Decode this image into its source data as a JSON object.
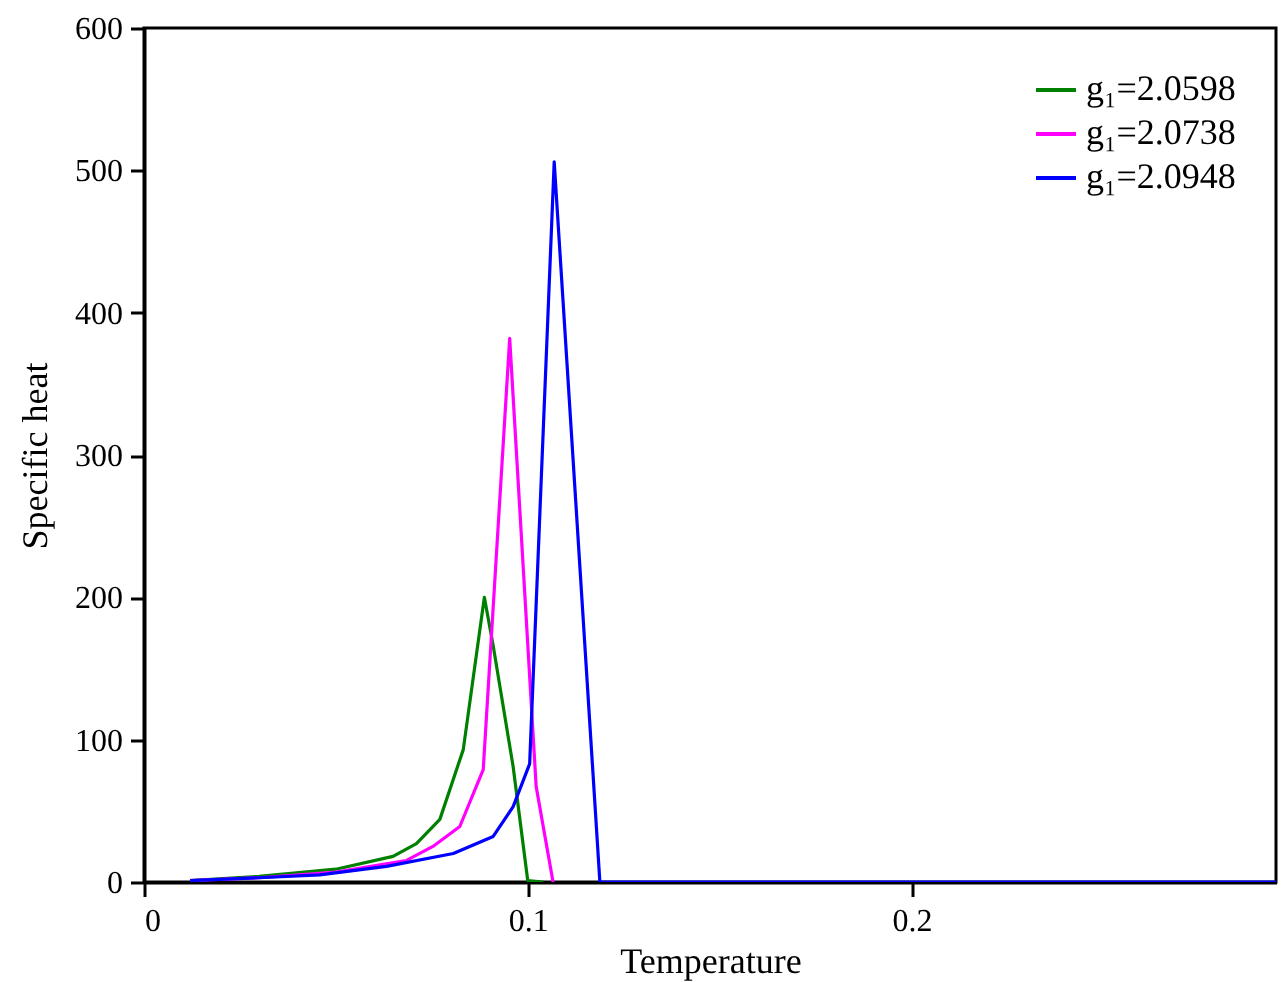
{
  "chart_data": {
    "type": "line",
    "xlabel": "Temperature",
    "ylabel": "Specific heat",
    "xlim": [
      0,
      0.295
    ],
    "ylim": [
      0,
      600
    ],
    "xticks": [
      0,
      0.1,
      0.2
    ],
    "yticks": [
      0,
      100,
      200,
      300,
      400,
      500,
      600
    ],
    "grid": false,
    "legend": "top right",
    "marker": "none",
    "line_style": "solid",
    "series": [
      {
        "name": "g₁=2.0598",
        "color": "#008000",
        "x": [
          0.012,
          0.03,
          0.05,
          0.0649,
          0.071,
          0.0771,
          0.0832,
          0.0887,
          0.091,
          0.0962,
          0.1,
          0.104
        ],
        "values": [
          1,
          4,
          9,
          18,
          27,
          44,
          93,
          200,
          166,
          81,
          1,
          0
        ]
      },
      {
        "name": "g₁=2.0738",
        "color": "#ff00ff",
        "x": [
          0.012,
          0.03,
          0.05,
          0.0683,
          0.0753,
          0.0823,
          0.0884,
          0.0953,
          0.1022,
          0.1066
        ],
        "values": [
          1,
          3,
          7,
          15,
          25,
          39,
          79,
          382,
          67,
          0
        ]
      },
      {
        "name": "g₁=2.0948",
        "color": "#0000ff",
        "x": [
          0.012,
          0.03,
          0.0458,
          0.0632,
          0.0806,
          0.091,
          0.0962,
          0.1005,
          0.1069,
          0.1188,
          0.295
        ],
        "values": [
          1,
          3,
          5,
          11,
          20,
          32,
          53,
          83,
          506,
          0,
          0
        ]
      }
    ]
  }
}
